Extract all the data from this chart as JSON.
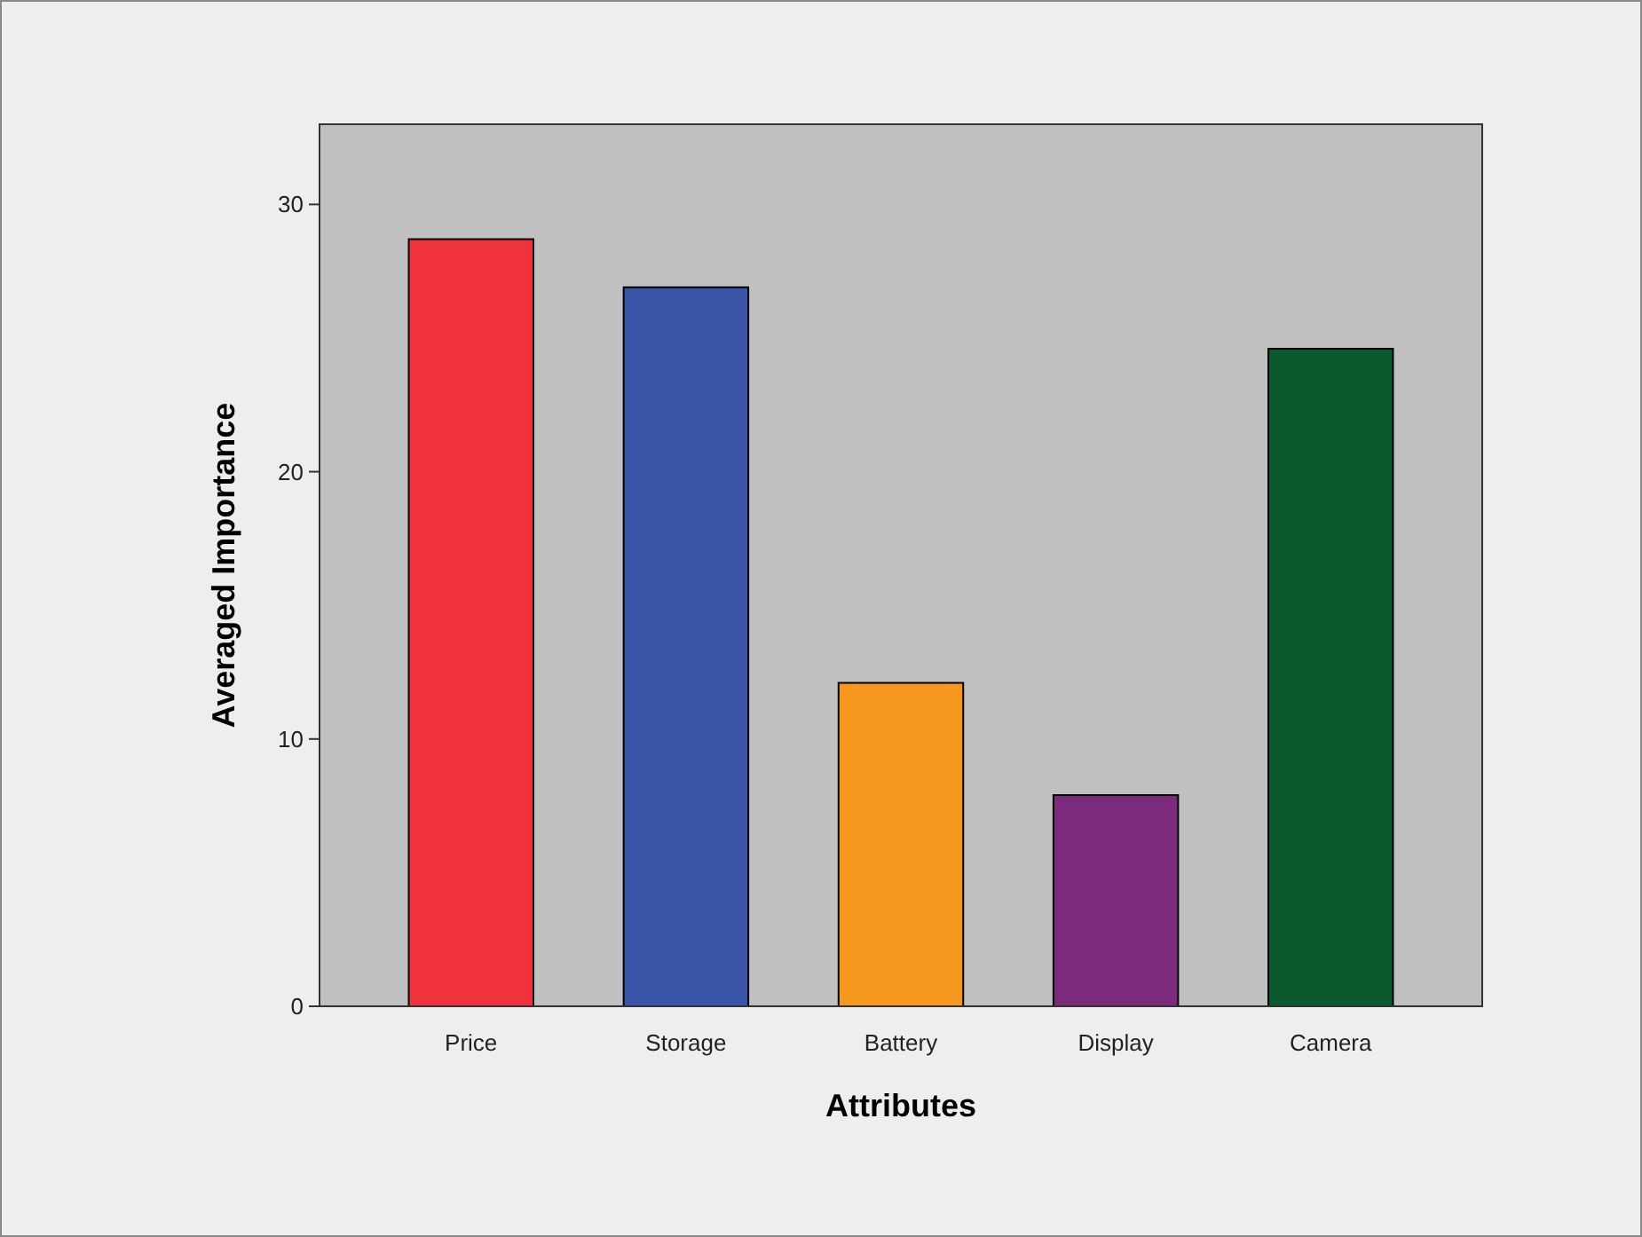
{
  "chart_data": {
    "type": "bar",
    "xlabel": "Attributes",
    "ylabel": "Averaged Importance",
    "categories": [
      "Price",
      "Storage",
      "Battery",
      "Display",
      "Camera"
    ],
    "values": [
      28.7,
      26.9,
      12.1,
      7.9,
      24.6
    ],
    "colors": [
      "#f0323a",
      "#3a55a8",
      "#f7981e",
      "#7b2a7c",
      "#0b5a2e"
    ],
    "ylim": [
      0,
      33
    ],
    "yticks": [
      0,
      10,
      20,
      30
    ],
    "grid": false
  }
}
